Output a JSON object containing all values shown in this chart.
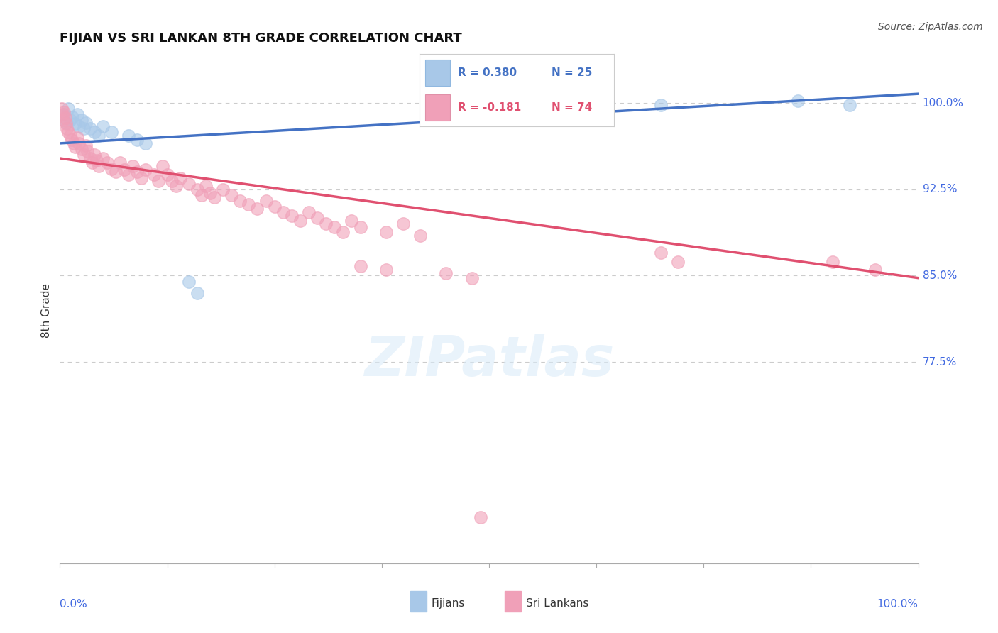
{
  "title": "FIJIAN VS SRI LANKAN 8TH GRADE CORRELATION CHART",
  "source": "Source: ZipAtlas.com",
  "ylabel": "8th Grade",
  "yticks": [
    0.775,
    0.85,
    0.925,
    1.0
  ],
  "ytick_labels": [
    "77.5%",
    "85.0%",
    "92.5%",
    "100.0%"
  ],
  "xlim": [
    0.0,
    1.0
  ],
  "ylim": [
    0.6,
    1.04
  ],
  "blue_color": "#A8C8E8",
  "pink_color": "#F0A0B8",
  "blue_line_color": "#4472C4",
  "pink_line_color": "#E05070",
  "blue_scatter": [
    [
      0.005,
      0.99
    ],
    [
      0.008,
      0.983
    ],
    [
      0.01,
      0.995
    ],
    [
      0.012,
      0.985
    ],
    [
      0.015,
      0.988
    ],
    [
      0.018,
      0.982
    ],
    [
      0.02,
      0.99
    ],
    [
      0.022,
      0.98
    ],
    [
      0.025,
      0.985
    ],
    [
      0.028,
      0.978
    ],
    [
      0.03,
      0.983
    ],
    [
      0.035,
      0.978
    ],
    [
      0.04,
      0.975
    ],
    [
      0.045,
      0.972
    ],
    [
      0.05,
      0.98
    ],
    [
      0.06,
      0.975
    ],
    [
      0.08,
      0.972
    ],
    [
      0.09,
      0.968
    ],
    [
      0.1,
      0.965
    ],
    [
      0.15,
      0.845
    ],
    [
      0.16,
      0.835
    ],
    [
      0.55,
      1.0
    ],
    [
      0.7,
      0.998
    ],
    [
      0.86,
      1.002
    ],
    [
      0.92,
      0.998
    ]
  ],
  "pink_scatter": [
    [
      0.002,
      0.995
    ],
    [
      0.003,
      0.99
    ],
    [
      0.004,
      0.985
    ],
    [
      0.005,
      0.992
    ],
    [
      0.006,
      0.987
    ],
    [
      0.007,
      0.982
    ],
    [
      0.008,
      0.978
    ],
    [
      0.01,
      0.975
    ],
    [
      0.012,
      0.972
    ],
    [
      0.014,
      0.968
    ],
    [
      0.016,
      0.965
    ],
    [
      0.018,
      0.962
    ],
    [
      0.02,
      0.97
    ],
    [
      0.022,
      0.965
    ],
    [
      0.025,
      0.96
    ],
    [
      0.028,
      0.955
    ],
    [
      0.03,
      0.963
    ],
    [
      0.032,
      0.958
    ],
    [
      0.035,
      0.952
    ],
    [
      0.038,
      0.948
    ],
    [
      0.04,
      0.955
    ],
    [
      0.043,
      0.95
    ],
    [
      0.045,
      0.945
    ],
    [
      0.05,
      0.952
    ],
    [
      0.055,
      0.948
    ],
    [
      0.06,
      0.943
    ],
    [
      0.065,
      0.94
    ],
    [
      0.07,
      0.948
    ],
    [
      0.075,
      0.942
    ],
    [
      0.08,
      0.938
    ],
    [
      0.085,
      0.945
    ],
    [
      0.09,
      0.94
    ],
    [
      0.095,
      0.935
    ],
    [
      0.1,
      0.942
    ],
    [
      0.11,
      0.938
    ],
    [
      0.115,
      0.932
    ],
    [
      0.12,
      0.945
    ],
    [
      0.125,
      0.938
    ],
    [
      0.13,
      0.932
    ],
    [
      0.135,
      0.928
    ],
    [
      0.14,
      0.935
    ],
    [
      0.15,
      0.93
    ],
    [
      0.16,
      0.925
    ],
    [
      0.165,
      0.92
    ],
    [
      0.17,
      0.928
    ],
    [
      0.175,
      0.922
    ],
    [
      0.18,
      0.918
    ],
    [
      0.19,
      0.925
    ],
    [
      0.2,
      0.92
    ],
    [
      0.21,
      0.915
    ],
    [
      0.22,
      0.912
    ],
    [
      0.23,
      0.908
    ],
    [
      0.24,
      0.915
    ],
    [
      0.25,
      0.91
    ],
    [
      0.26,
      0.905
    ],
    [
      0.27,
      0.902
    ],
    [
      0.28,
      0.898
    ],
    [
      0.29,
      0.905
    ],
    [
      0.3,
      0.9
    ],
    [
      0.31,
      0.895
    ],
    [
      0.32,
      0.892
    ],
    [
      0.33,
      0.888
    ],
    [
      0.34,
      0.898
    ],
    [
      0.35,
      0.892
    ],
    [
      0.38,
      0.888
    ],
    [
      0.4,
      0.895
    ],
    [
      0.42,
      0.885
    ],
    [
      0.35,
      0.858
    ],
    [
      0.38,
      0.855
    ],
    [
      0.45,
      0.852
    ],
    [
      0.48,
      0.848
    ],
    [
      0.49,
      0.64
    ],
    [
      0.7,
      0.87
    ],
    [
      0.72,
      0.862
    ],
    [
      0.9,
      0.862
    ],
    [
      0.95,
      0.855
    ]
  ],
  "blue_trendline": [
    [
      0.0,
      0.965
    ],
    [
      1.0,
      1.008
    ]
  ],
  "pink_trendline": [
    [
      0.0,
      0.952
    ],
    [
      1.0,
      0.848
    ]
  ],
  "grid_color": "#CCCCCC",
  "background_color": "#FFFFFF"
}
